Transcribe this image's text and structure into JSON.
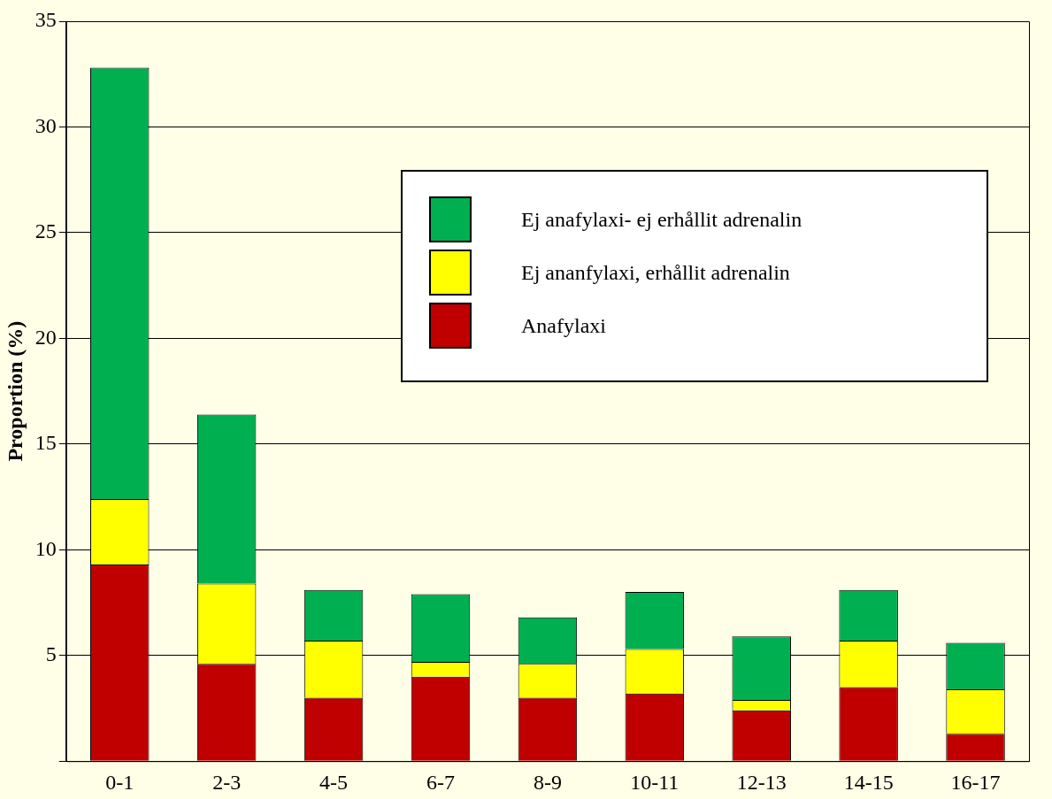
{
  "chart_data": {
    "type": "bar",
    "ylabel": "Proportion (%)",
    "categories": [
      "0-1",
      "2-3",
      "4-5",
      "6-7",
      "8-9",
      "10-11",
      "12-13",
      "14-15",
      "16-17"
    ],
    "stacked": true,
    "series": [
      {
        "name": "Anafylaxi",
        "color": "#c00000",
        "values": [
          9.3,
          4.6,
          3.0,
          4.0,
          3.0,
          3.2,
          2.4,
          3.5,
          1.3
        ]
      },
      {
        "name": "Ej ananfylaxi, erhållit adrenalin",
        "color": "#ffff00",
        "values": [
          3.1,
          3.8,
          2.7,
          0.7,
          1.6,
          2.1,
          0.5,
          2.2,
          2.1
        ]
      },
      {
        "name": "Ej anafylaxi- ej erhållit adrenalin",
        "color": "#00b050",
        "values": [
          20.4,
          8.0,
          2.4,
          3.2,
          2.2,
          2.7,
          3.0,
          2.4,
          2.2
        ]
      }
    ],
    "ylim": [
      0,
      35
    ],
    "yticks": [
      {
        "value": 0,
        "label": null
      },
      5,
      10,
      15,
      20,
      25,
      30,
      35
    ],
    "grid": "y",
    "legend": "top right"
  }
}
